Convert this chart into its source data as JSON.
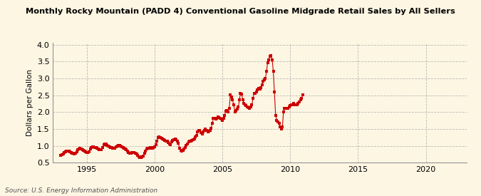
{
  "title": "Monthly Rocky Mountain (PADD 4) Conventional Gasoline Midgrade Retail Sales by All Sellers",
  "ylabel": "Dollars per Gallon",
  "source": "Source: U.S. Energy Information Administration",
  "background_color": "#fdf6e3",
  "plot_bg_color": "#fdf6e3",
  "dot_color": "#cc0000",
  "line_color": "#cc0000",
  "xlim": [
    1992.5,
    2023
  ],
  "ylim": [
    0.5,
    4.05
  ],
  "yticks": [
    0.5,
    1.0,
    1.5,
    2.0,
    2.5,
    3.0,
    3.5,
    4.0
  ],
  "xticks": [
    1995,
    2000,
    2005,
    2010,
    2015,
    2020
  ],
  "data": [
    [
      1993.08,
      0.72
    ],
    [
      1993.17,
      0.74
    ],
    [
      1993.25,
      0.76
    ],
    [
      1993.33,
      0.8
    ],
    [
      1993.42,
      0.82
    ],
    [
      1993.5,
      0.84
    ],
    [
      1993.58,
      0.85
    ],
    [
      1993.67,
      0.84
    ],
    [
      1993.75,
      0.83
    ],
    [
      1993.83,
      0.81
    ],
    [
      1993.92,
      0.79
    ],
    [
      1994.0,
      0.77
    ],
    [
      1994.08,
      0.76
    ],
    [
      1994.17,
      0.78
    ],
    [
      1994.25,
      0.82
    ],
    [
      1994.33,
      0.88
    ],
    [
      1994.42,
      0.91
    ],
    [
      1994.5,
      0.92
    ],
    [
      1994.58,
      0.91
    ],
    [
      1994.67,
      0.89
    ],
    [
      1994.75,
      0.87
    ],
    [
      1994.83,
      0.85
    ],
    [
      1994.92,
      0.83
    ],
    [
      1995.0,
      0.81
    ],
    [
      1995.08,
      0.8
    ],
    [
      1995.17,
      0.83
    ],
    [
      1995.25,
      0.9
    ],
    [
      1995.33,
      0.96
    ],
    [
      1995.42,
      0.98
    ],
    [
      1995.5,
      0.97
    ],
    [
      1995.58,
      0.96
    ],
    [
      1995.67,
      0.94
    ],
    [
      1995.75,
      0.92
    ],
    [
      1995.83,
      0.9
    ],
    [
      1995.92,
      0.89
    ],
    [
      1996.0,
      0.88
    ],
    [
      1996.08,
      0.89
    ],
    [
      1996.17,
      0.96
    ],
    [
      1996.25,
      1.03
    ],
    [
      1996.33,
      1.06
    ],
    [
      1996.42,
      1.05
    ],
    [
      1996.5,
      1.02
    ],
    [
      1996.58,
      1.0
    ],
    [
      1996.67,
      0.98
    ],
    [
      1996.75,
      0.96
    ],
    [
      1996.83,
      0.94
    ],
    [
      1996.92,
      0.93
    ],
    [
      1997.0,
      0.92
    ],
    [
      1997.08,
      0.93
    ],
    [
      1997.17,
      0.97
    ],
    [
      1997.25,
      1.0
    ],
    [
      1997.33,
      1.02
    ],
    [
      1997.42,
      1.01
    ],
    [
      1997.5,
      0.99
    ],
    [
      1997.58,
      0.97
    ],
    [
      1997.67,
      0.95
    ],
    [
      1997.75,
      0.93
    ],
    [
      1997.83,
      0.91
    ],
    [
      1997.92,
      0.89
    ],
    [
      1998.0,
      0.84
    ],
    [
      1998.08,
      0.8
    ],
    [
      1998.17,
      0.78
    ],
    [
      1998.25,
      0.78
    ],
    [
      1998.33,
      0.8
    ],
    [
      1998.42,
      0.8
    ],
    [
      1998.5,
      0.8
    ],
    [
      1998.58,
      0.78
    ],
    [
      1998.67,
      0.76
    ],
    [
      1998.75,
      0.72
    ],
    [
      1998.83,
      0.68
    ],
    [
      1998.92,
      0.65
    ],
    [
      1999.0,
      0.65
    ],
    [
      1999.08,
      0.67
    ],
    [
      1999.17,
      0.7
    ],
    [
      1999.25,
      0.78
    ],
    [
      1999.33,
      0.85
    ],
    [
      1999.42,
      0.9
    ],
    [
      1999.5,
      0.92
    ],
    [
      1999.58,
      0.93
    ],
    [
      1999.67,
      0.94
    ],
    [
      1999.75,
      0.93
    ],
    [
      1999.83,
      0.93
    ],
    [
      1999.92,
      0.94
    ],
    [
      2000.0,
      0.98
    ],
    [
      2000.08,
      1.04
    ],
    [
      2000.17,
      1.14
    ],
    [
      2000.25,
      1.24
    ],
    [
      2000.33,
      1.26
    ],
    [
      2000.42,
      1.25
    ],
    [
      2000.5,
      1.23
    ],
    [
      2000.58,
      1.21
    ],
    [
      2000.67,
      1.19
    ],
    [
      2000.75,
      1.16
    ],
    [
      2000.83,
      1.15
    ],
    [
      2000.92,
      1.13
    ],
    [
      2001.0,
      1.09
    ],
    [
      2001.08,
      1.06
    ],
    [
      2001.17,
      1.03
    ],
    [
      2001.25,
      1.11
    ],
    [
      2001.33,
      1.16
    ],
    [
      2001.42,
      1.19
    ],
    [
      2001.5,
      1.21
    ],
    [
      2001.58,
      1.19
    ],
    [
      2001.67,
      1.14
    ],
    [
      2001.75,
      1.07
    ],
    [
      2001.83,
      0.93
    ],
    [
      2001.92,
      0.86
    ],
    [
      2002.0,
      0.84
    ],
    [
      2002.08,
      0.86
    ],
    [
      2002.17,
      0.91
    ],
    [
      2002.25,
      0.96
    ],
    [
      2002.33,
      1.01
    ],
    [
      2002.42,
      1.06
    ],
    [
      2002.5,
      1.11
    ],
    [
      2002.58,
      1.13
    ],
    [
      2002.67,
      1.13
    ],
    [
      2002.75,
      1.16
    ],
    [
      2002.83,
      1.19
    ],
    [
      2002.92,
      1.21
    ],
    [
      2003.0,
      1.26
    ],
    [
      2003.08,
      1.31
    ],
    [
      2003.17,
      1.41
    ],
    [
      2003.25,
      1.46
    ],
    [
      2003.33,
      1.46
    ],
    [
      2003.42,
      1.39
    ],
    [
      2003.5,
      1.36
    ],
    [
      2003.58,
      1.41
    ],
    [
      2003.67,
      1.46
    ],
    [
      2003.75,
      1.49
    ],
    [
      2003.83,
      1.46
    ],
    [
      2003.92,
      1.41
    ],
    [
      2004.0,
      1.43
    ],
    [
      2004.08,
      1.46
    ],
    [
      2004.17,
      1.53
    ],
    [
      2004.25,
      1.66
    ],
    [
      2004.33,
      1.81
    ],
    [
      2004.42,
      1.81
    ],
    [
      2004.5,
      1.79
    ],
    [
      2004.58,
      1.81
    ],
    [
      2004.67,
      1.86
    ],
    [
      2004.75,
      1.83
    ],
    [
      2004.83,
      1.81
    ],
    [
      2004.92,
      1.79
    ],
    [
      2005.0,
      1.76
    ],
    [
      2005.08,
      1.81
    ],
    [
      2005.17,
      1.91
    ],
    [
      2005.25,
      2.03
    ],
    [
      2005.33,
      2.06
    ],
    [
      2005.42,
      2.01
    ],
    [
      2005.5,
      2.11
    ],
    [
      2005.58,
      2.51
    ],
    [
      2005.67,
      2.46
    ],
    [
      2005.75,
      2.36
    ],
    [
      2005.83,
      2.21
    ],
    [
      2005.92,
      2.01
    ],
    [
      2006.0,
      2.06
    ],
    [
      2006.08,
      2.09
    ],
    [
      2006.17,
      2.16
    ],
    [
      2006.25,
      2.36
    ],
    [
      2006.33,
      2.56
    ],
    [
      2006.42,
      2.53
    ],
    [
      2006.5,
      2.36
    ],
    [
      2006.58,
      2.26
    ],
    [
      2006.67,
      2.21
    ],
    [
      2006.75,
      2.19
    ],
    [
      2006.83,
      2.16
    ],
    [
      2006.92,
      2.13
    ],
    [
      2007.0,
      2.11
    ],
    [
      2007.08,
      2.16
    ],
    [
      2007.17,
      2.21
    ],
    [
      2007.25,
      2.41
    ],
    [
      2007.33,
      2.56
    ],
    [
      2007.42,
      2.56
    ],
    [
      2007.5,
      2.61
    ],
    [
      2007.58,
      2.66
    ],
    [
      2007.67,
      2.71
    ],
    [
      2007.75,
      2.69
    ],
    [
      2007.83,
      2.73
    ],
    [
      2007.92,
      2.81
    ],
    [
      2008.0,
      2.91
    ],
    [
      2008.08,
      2.96
    ],
    [
      2008.17,
      3.01
    ],
    [
      2008.25,
      3.21
    ],
    [
      2008.33,
      3.46
    ],
    [
      2008.42,
      3.56
    ],
    [
      2008.5,
      3.66
    ],
    [
      2008.58,
      3.68
    ],
    [
      2008.67,
      3.56
    ],
    [
      2008.75,
      3.21
    ],
    [
      2008.83,
      2.61
    ],
    [
      2008.92,
      1.91
    ],
    [
      2009.0,
      1.76
    ],
    [
      2009.08,
      1.71
    ],
    [
      2009.17,
      1.66
    ],
    [
      2009.25,
      1.56
    ],
    [
      2009.33,
      1.51
    ],
    [
      2009.42,
      1.56
    ],
    [
      2009.5,
      2.01
    ],
    [
      2009.58,
      2.11
    ],
    [
      2009.67,
      2.11
    ],
    [
      2009.75,
      2.11
    ],
    [
      2009.83,
      2.11
    ],
    [
      2009.92,
      2.16
    ],
    [
      2010.0,
      2.19
    ],
    [
      2010.08,
      2.21
    ],
    [
      2010.17,
      2.21
    ],
    [
      2010.25,
      2.26
    ],
    [
      2010.33,
      2.23
    ],
    [
      2010.42,
      2.21
    ],
    [
      2010.5,
      2.23
    ],
    [
      2010.58,
      2.26
    ],
    [
      2010.67,
      2.31
    ],
    [
      2010.75,
      2.36
    ],
    [
      2010.83,
      2.41
    ],
    [
      2010.92,
      2.51
    ]
  ]
}
